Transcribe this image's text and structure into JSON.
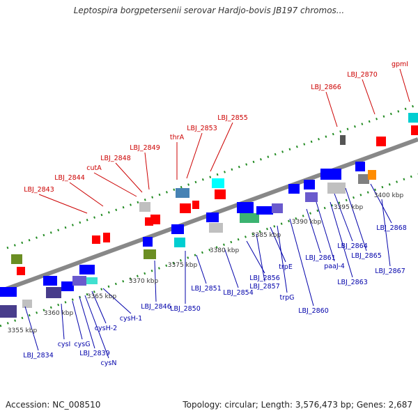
{
  "title": "Leptospira borgpetersenii serovar Hardjo-bovis JB197 chromos...",
  "footer": {
    "accession": "Accession: NC_008510",
    "topology": "Topology: circular; Length: 3,576,473 bp; Genes: 2,687"
  },
  "colors": {
    "top_labels": "#cc0000",
    "bottom_labels": "#0000aa",
    "backbone": "#888888"
  },
  "kbp_ticks": [
    "3355 kbp",
    "3360 kbp",
    "3365 kbp",
    "3370 kbp",
    "3375 kbp",
    "3380 kbp",
    "3385 kbp",
    "3390 kbp",
    "3395 kbp",
    "3400 kbp"
  ],
  "top_labels": [
    "LBJ_2843",
    "LBJ_2844",
    "cutA",
    "LBJ_2848",
    "LBJ_2849",
    "thrA",
    "LBJ_2853",
    "LBJ_2855",
    "LBJ_2866",
    "LBJ_2870",
    "gpmI"
  ],
  "bottom_labels": [
    "LBJ_2834",
    "cysI",
    "cysG",
    "LBJ_2839",
    "cysN",
    "cysH-2",
    "cysH-1",
    "LBJ_2846",
    "LBJ_2850",
    "LBJ_2851",
    "LBJ_2854",
    "LBJ_2856",
    "LBJ_2857",
    "trpE",
    "trpG",
    "LBJ_2860",
    "LBJ_2861",
    "paaJ-4",
    "LBJ_2863",
    "LBJ_2864",
    "LBJ_2865",
    "LBJ_2868",
    "LBJ_2867"
  ]
}
